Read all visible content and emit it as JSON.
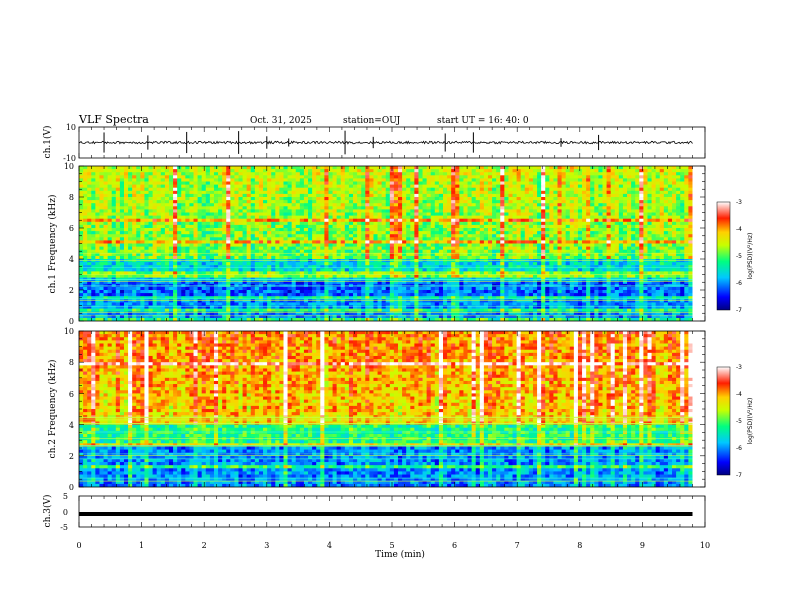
{
  "header": {
    "title": "VLF Spectra",
    "date": "Oct. 31, 2025",
    "station": "station=OUJ",
    "start": "start  UT  =   16: 40: 0"
  },
  "chart_data": [
    {
      "type": "line",
      "panel": "ch1-waveform",
      "ylabel": "ch.1(V)",
      "ylim": [
        -10,
        10
      ],
      "y_ticks": [
        "10",
        "-10"
      ],
      "baseline": 0,
      "x_range_min": [
        0,
        9.8
      ]
    },
    {
      "type": "heatmap",
      "panel": "ch1-spectrogram",
      "ylabel": "ch.1 Frequency (kHz)",
      "ylim": [
        0,
        10
      ],
      "y_ticks": [
        "0",
        "2",
        "4",
        "6",
        "8",
        "10"
      ],
      "colorbar": {
        "label": "log(PSD)(V²/Hz)",
        "range": [
          -7,
          -3
        ],
        "ticks": [
          "-3",
          "-4",
          "-5",
          "-6",
          "-7"
        ]
      }
    },
    {
      "type": "heatmap",
      "panel": "ch2-spectrogram",
      "ylabel": "ch.2 Frequency (kHz)",
      "ylim": [
        0,
        10
      ],
      "y_ticks": [
        "0",
        "2",
        "4",
        "6",
        "8",
        "10"
      ],
      "colorbar": {
        "label": "log(PSD)(V²/Hz)",
        "range": [
          -7,
          -3
        ],
        "ticks": [
          "-3",
          "-4",
          "-5",
          "-6",
          "-7"
        ]
      }
    },
    {
      "type": "line",
      "panel": "ch3-waveform",
      "ylabel": "ch.3(V)",
      "ylim": [
        -5,
        5
      ],
      "y_ticks": [
        "5",
        "0",
        "-5"
      ],
      "baseline": -0.8,
      "x_range_min": [
        0,
        9.8
      ]
    }
  ],
  "x_axis": {
    "label": "Time  (min)",
    "range": [
      0,
      10
    ],
    "ticks": [
      "0",
      "1",
      "2",
      "3",
      "4",
      "5",
      "6",
      "7",
      "8",
      "9",
      "10"
    ]
  }
}
